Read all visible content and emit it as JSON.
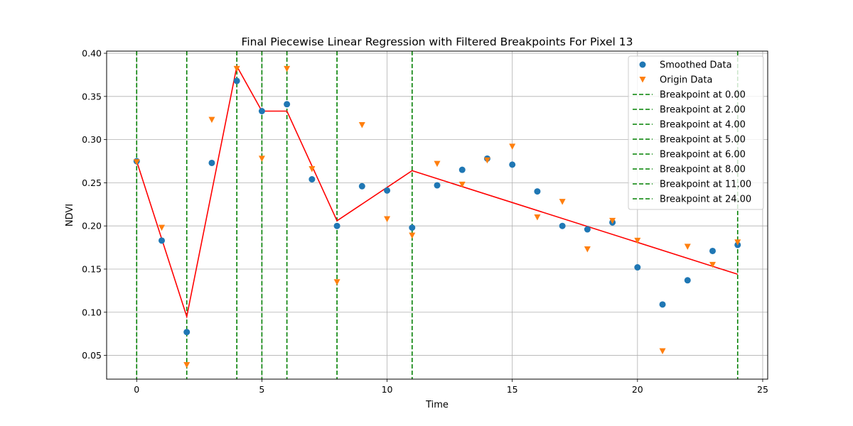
{
  "chart_data": {
    "type": "scatter",
    "title": "Final Piecewise Linear Regression with Filtered Breakpoints For Pixel 13",
    "xlabel": "Time",
    "ylabel": "NDVI",
    "xlim": [
      -1.2,
      25.2
    ],
    "ylim": [
      0.0225,
      0.4025
    ],
    "xticks": [
      0,
      5,
      10,
      15,
      20,
      25
    ],
    "yticks": [
      0.05,
      0.1,
      0.15,
      0.2,
      0.25,
      0.3,
      0.35,
      0.4
    ],
    "xtick_labels": [
      "0",
      "5",
      "10",
      "15",
      "20",
      "25"
    ],
    "ytick_labels": [
      "0.05",
      "0.10",
      "0.15",
      "0.20",
      "0.25",
      "0.30",
      "0.35",
      "0.40"
    ],
    "grid": true,
    "legend_position": "top-right",
    "series": [
      {
        "name": "Smoothed Data",
        "kind": "scatter",
        "marker": "circle",
        "color": "#1f77b4",
        "x": [
          0,
          1,
          2,
          3,
          4,
          5,
          6,
          7,
          8,
          9,
          10,
          11,
          12,
          13,
          14,
          15,
          16,
          17,
          18,
          19,
          20,
          21,
          22,
          23,
          24
        ],
        "y": [
          0.275,
          0.183,
          0.077,
          0.273,
          0.368,
          0.333,
          0.341,
          0.254,
          0.2,
          0.246,
          0.241,
          0.198,
          0.247,
          0.265,
          0.278,
          0.271,
          0.24,
          0.2,
          0.196,
          0.204,
          0.152,
          0.109,
          0.137,
          0.171,
          0.178
        ]
      },
      {
        "name": "Origin Data",
        "kind": "scatter",
        "marker": "triangle-down",
        "color": "#ff7f0e",
        "x": [
          0,
          1,
          2,
          3,
          4,
          5,
          6,
          7,
          8,
          9,
          10,
          11,
          12,
          13,
          14,
          15,
          16,
          17,
          18,
          19,
          20,
          21,
          22,
          23,
          24
        ],
        "y": [
          0.274,
          0.198,
          0.039,
          0.323,
          0.382,
          0.278,
          0.382,
          0.266,
          0.135,
          0.317,
          0.208,
          0.189,
          0.272,
          0.248,
          0.276,
          0.292,
          0.21,
          0.228,
          0.173,
          0.206,
          0.183,
          0.055,
          0.176,
          0.155,
          0.181
        ]
      },
      {
        "kind": "line",
        "color": "#ff0000",
        "x": [
          0,
          2,
          4,
          5,
          6,
          8,
          11,
          24
        ],
        "y": [
          0.275,
          0.095,
          0.385,
          0.333,
          0.333,
          0.206,
          0.264,
          0.144
        ]
      }
    ],
    "breakpoints": {
      "color": "#008000",
      "style": "dashed",
      "items": [
        {
          "x": 0,
          "label": "Breakpoint at 0.00"
        },
        {
          "x": 2,
          "label": "Breakpoint at 2.00"
        },
        {
          "x": 4,
          "label": "Breakpoint at 4.00"
        },
        {
          "x": 5,
          "label": "Breakpoint at 5.00"
        },
        {
          "x": 6,
          "label": "Breakpoint at 6.00"
        },
        {
          "x": 8,
          "label": "Breakpoint at 8.00"
        },
        {
          "x": 11,
          "label": "Breakpoint at 11.00"
        },
        {
          "x": 24,
          "label": "Breakpoint at 24.00"
        }
      ]
    }
  }
}
